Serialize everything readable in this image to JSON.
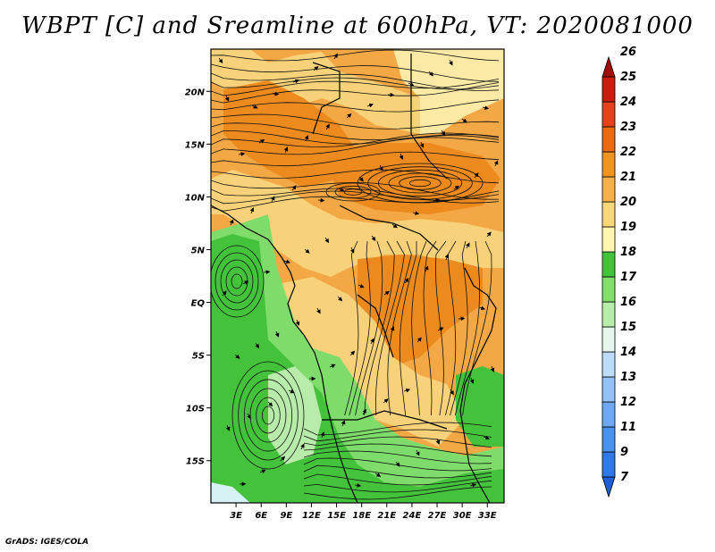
{
  "title": "WBPT [C] and Sreamline at 600hPa, VT: 2020081000",
  "credit": "GrADS: IGES/COLA",
  "map": {
    "lon_range": [
      0,
      35
    ],
    "lat_range": [
      -19,
      24
    ],
    "lon_ticks": [
      "3E",
      "6E",
      "9E",
      "12E",
      "15E",
      "18E",
      "21E",
      "24E",
      "27E",
      "30E",
      "33E"
    ],
    "lon_values": [
      3,
      6,
      9,
      12,
      15,
      18,
      21,
      24,
      27,
      30,
      33
    ],
    "lat_ticks": [
      "20N",
      "15N",
      "10N",
      "5N",
      "EQ",
      "5S",
      "10S",
      "15S"
    ],
    "lat_values": [
      20,
      15,
      10,
      5,
      0,
      -5,
      -10,
      -15
    ]
  },
  "colorbar": {
    "labels": [
      "7",
      "9",
      "11",
      "12",
      "13",
      "14",
      "15",
      "16",
      "17",
      "18",
      "19",
      "20",
      "21",
      "22",
      "23",
      "24",
      "25",
      "26"
    ],
    "colors": [
      "#1f5fd6",
      "#2f78e6",
      "#4b91ee",
      "#6ea8f2",
      "#94c2f7",
      "#bcdcfa",
      "#e6f6ec",
      "#b8ecaa",
      "#84de6e",
      "#44c23c",
      "#fff7b0",
      "#f8d77a",
      "#f5b24a",
      "#ef9422",
      "#eb6a14",
      "#e4421e",
      "#cc1c10",
      "#a30c06"
    ]
  },
  "fields": {
    "warm": "#f1a03a",
    "very_warm": "#ed8a1e",
    "mild": "#f8d27a",
    "pale": "#fbe9a6",
    "green_dark": "#44c23c",
    "green": "#7fdc6a",
    "green_light": "#b9ecaa",
    "coast_pale": "#d6f2f4"
  }
}
